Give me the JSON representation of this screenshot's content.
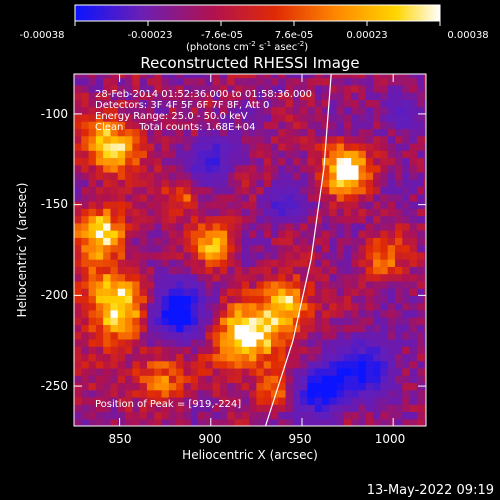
{
  "colorbar": {
    "tick_values": [
      "-0.00038",
      "-0.00023",
      "-7.6e-05",
      "7.6e-05",
      "0.00023",
      "0.00038"
    ],
    "units": [
      "(photons cm",
      "-2",
      " s",
      "-1",
      " asec",
      "-2",
      ")"
    ],
    "colormap": "blue-purple-red-orange-yellow-white",
    "colors": [
      "#0a14ff",
      "#6a1fb5",
      "#b1124e",
      "#e02a05",
      "#ff8a00",
      "#ffd500",
      "#ffffff"
    ]
  },
  "chart_data": {
    "type": "heatmap",
    "title": "Reconstructed RHESSI Image",
    "xlabel": "Heliocentric X (arcsec)",
    "ylabel": "Heliocentric Y (arcsec)",
    "xlim": [
      825,
      1018
    ],
    "ylim": [
      -272,
      -78
    ],
    "x_ticks": [
      850,
      900,
      950,
      1000
    ],
    "y_ticks": [
      -100,
      -150,
      -200,
      -250
    ],
    "x_tick_labels": [
      "850",
      "900",
      "950",
      "1000"
    ],
    "y_tick_labels": [
      "-100",
      "-150",
      "-200",
      "-250"
    ],
    "grid": false,
    "info_lines": [
      "28-Feb-2014 01:52:36.000 to 01:58:36.000",
      "Detectors: 3F 4F 5F 6F 7F 8F, Att 0",
      "Energy Range: 25.0 - 50.0 keV",
      "Clean     Total counts: 1.68E+04"
    ],
    "peak_label": "Position of Peak = [919,-224]",
    "peak": [
      919,
      -224
    ],
    "limb_curve": [
      [
        930,
        -272
      ],
      [
        945,
        -225
      ],
      [
        955,
        -180
      ],
      [
        962,
        -130
      ],
      [
        966,
        -78
      ]
    ],
    "bright_regions": [
      {
        "x": 846,
        "y": -118,
        "r": 16,
        "intensity": 0.85
      },
      {
        "x": 840,
        "y": -165,
        "r": 14,
        "intensity": 0.8
      },
      {
        "x": 848,
        "y": -205,
        "r": 20,
        "intensity": 0.95
      },
      {
        "x": 870,
        "y": -245,
        "r": 14,
        "intensity": 0.6
      },
      {
        "x": 903,
        "y": -172,
        "r": 12,
        "intensity": 0.75
      },
      {
        "x": 919,
        "y": -224,
        "r": 18,
        "intensity": 1.0
      },
      {
        "x": 942,
        "y": -205,
        "r": 14,
        "intensity": 0.85
      },
      {
        "x": 974,
        "y": -130,
        "r": 14,
        "intensity": 0.95
      },
      {
        "x": 993,
        "y": -178,
        "r": 12,
        "intensity": 0.5
      },
      {
        "x": 885,
        "y": -145,
        "r": 10,
        "intensity": 0.55
      },
      {
        "x": 935,
        "y": -252,
        "r": 10,
        "intensity": 0.55
      }
    ],
    "dark_regions": [
      {
        "x": 880,
        "y": -208,
        "r": 16,
        "intensity": 0.9
      },
      {
        "x": 960,
        "y": -252,
        "r": 14,
        "intensity": 0.8
      },
      {
        "x": 900,
        "y": -125,
        "r": 12,
        "intensity": 0.6
      },
      {
        "x": 985,
        "y": -240,
        "r": 16,
        "intensity": 0.7
      },
      {
        "x": 940,
        "y": -150,
        "r": 10,
        "intensity": 0.5
      },
      {
        "x": 1005,
        "y": -100,
        "r": 10,
        "intensity": 0.5
      }
    ]
  },
  "footer": {
    "date": "13-May-2022 09:19"
  }
}
